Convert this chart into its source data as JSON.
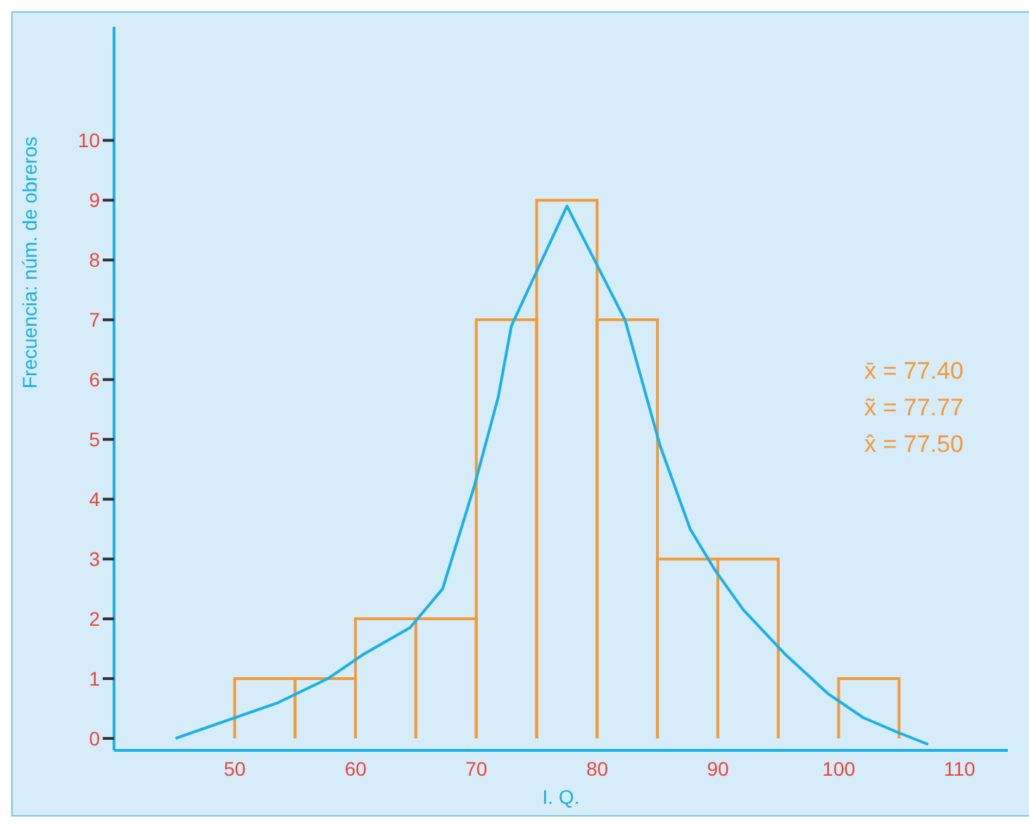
{
  "chart_data": {
    "type": "histogram",
    "xlabel": "I. Q.",
    "ylabel": "Frecuencia:  núm. de obreros",
    "bins": [
      50,
      55,
      60,
      65,
      70,
      75,
      80,
      85,
      90,
      95,
      100,
      105
    ],
    "values": [
      1,
      1,
      2,
      2,
      7,
      9,
      7,
      3,
      3,
      0,
      1
    ],
    "color": "#f39a3a",
    "series": [
      {
        "type": "line",
        "color": "#1ab0e8",
        "x": [
          45.1,
          53.6,
          57.7,
          60.6,
          64.5,
          67.2,
          69.8,
          71.8,
          72.9,
          77.5,
          82.3,
          85.2,
          87.7,
          89.8,
          92.1,
          95.6,
          99.1,
          102,
          104.9,
          107.4
        ],
        "values": [
          0,
          0.6,
          1,
          1.4,
          1.85,
          2.5,
          4.2,
          5.7,
          6.9,
          8.9,
          7,
          4.9,
          3.5,
          2.8,
          2.15,
          1.4,
          0.75,
          0.35,
          0.1,
          -0.1
        ]
      }
    ],
    "xlim": [
      40,
      114
    ],
    "xticks": [
      50,
      60,
      70,
      80,
      90,
      100,
      110
    ],
    "ylim": [
      -0.2,
      11.9
    ],
    "yticks": [
      0,
      1,
      2,
      3,
      4,
      5,
      6,
      7,
      8,
      9,
      10
    ],
    "annotations": [
      "x̄ = 77.40",
      "x̃ = 77.77",
      "x̂ = 77.50"
    ]
  }
}
